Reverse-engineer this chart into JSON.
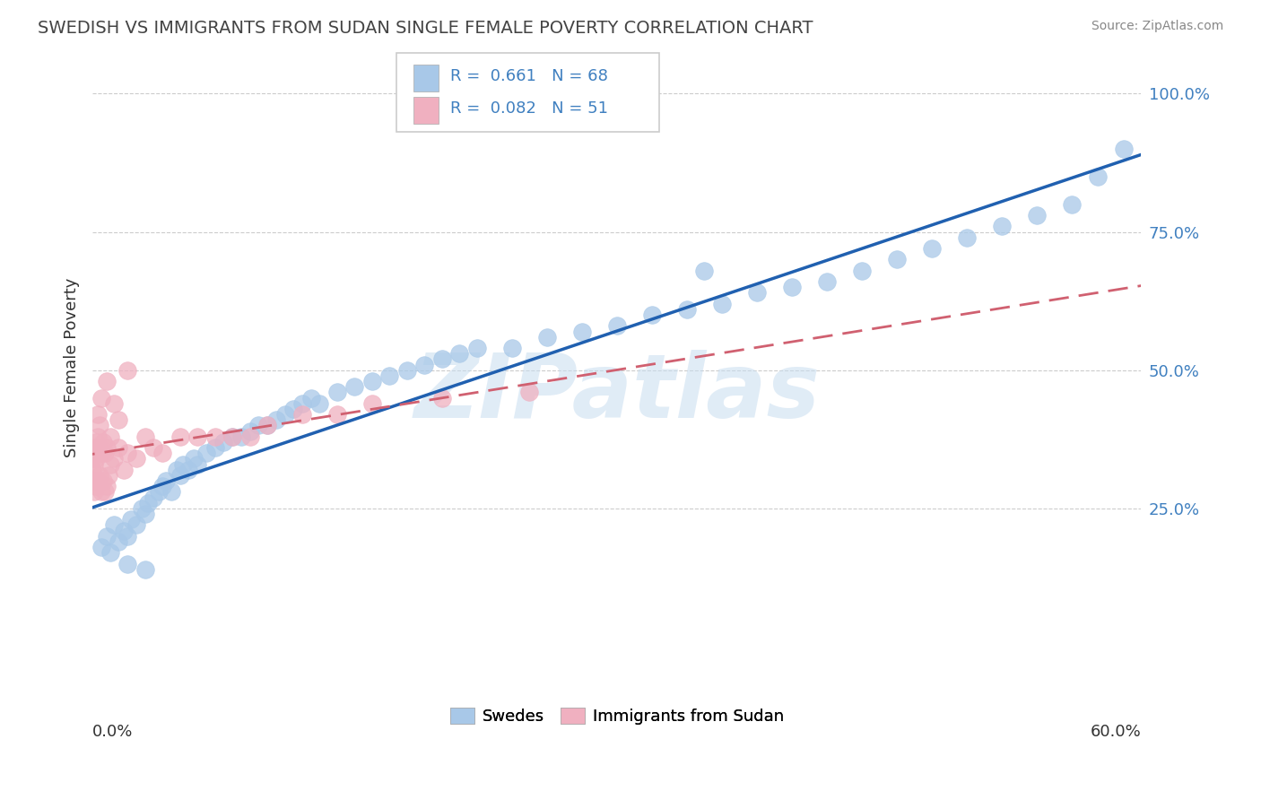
{
  "title": "SWEDISH VS IMMIGRANTS FROM SUDAN SINGLE FEMALE POVERTY CORRELATION CHART",
  "source": "Source: ZipAtlas.com",
  "ylabel": "Single Female Poverty",
  "blue_color": "#a8c8e8",
  "pink_color": "#f0b0c0",
  "trend_blue": "#2060b0",
  "trend_pink": "#d06070",
  "tick_color": "#4080c0",
  "watermark": "ZIPatlas",
  "legend_r1": "R = 0.661",
  "legend_n1": "N = 68",
  "legend_r2": "R = 0.082",
  "legend_n2": "N = 51",
  "xlim": [
    0.0,
    0.6
  ],
  "ylim": [
    -0.07,
    1.08
  ],
  "yticks": [
    0.25,
    0.5,
    0.75,
    1.0
  ],
  "ytick_labels": [
    "25.0%",
    "50.0%",
    "75.0%",
    "100.0%"
  ],
  "swedes_x": [
    0.005,
    0.008,
    0.01,
    0.012,
    0.015,
    0.018,
    0.02,
    0.022,
    0.025,
    0.028,
    0.03,
    0.032,
    0.035,
    0.038,
    0.04,
    0.042,
    0.045,
    0.048,
    0.05,
    0.052,
    0.055,
    0.058,
    0.06,
    0.065,
    0.07,
    0.075,
    0.08,
    0.085,
    0.09,
    0.095,
    0.1,
    0.105,
    0.11,
    0.115,
    0.12,
    0.125,
    0.13,
    0.14,
    0.15,
    0.16,
    0.17,
    0.18,
    0.19,
    0.2,
    0.21,
    0.22,
    0.24,
    0.26,
    0.28,
    0.3,
    0.32,
    0.34,
    0.36,
    0.38,
    0.4,
    0.42,
    0.44,
    0.46,
    0.48,
    0.5,
    0.52,
    0.54,
    0.56,
    0.575,
    0.02,
    0.03,
    0.59,
    0.35
  ],
  "swedes_y": [
    0.18,
    0.2,
    0.17,
    0.22,
    0.19,
    0.21,
    0.2,
    0.23,
    0.22,
    0.25,
    0.24,
    0.26,
    0.27,
    0.28,
    0.29,
    0.3,
    0.28,
    0.32,
    0.31,
    0.33,
    0.32,
    0.34,
    0.33,
    0.35,
    0.36,
    0.37,
    0.38,
    0.38,
    0.39,
    0.4,
    0.4,
    0.41,
    0.42,
    0.43,
    0.44,
    0.45,
    0.44,
    0.46,
    0.47,
    0.48,
    0.49,
    0.5,
    0.51,
    0.52,
    0.53,
    0.54,
    0.54,
    0.56,
    0.57,
    0.58,
    0.6,
    0.61,
    0.62,
    0.64,
    0.65,
    0.66,
    0.68,
    0.7,
    0.72,
    0.74,
    0.76,
    0.78,
    0.8,
    0.85,
    0.15,
    0.14,
    0.9,
    0.68
  ],
  "sudan_x": [
    0.0,
    0.0,
    0.0,
    0.001,
    0.001,
    0.001,
    0.002,
    0.002,
    0.002,
    0.003,
    0.003,
    0.003,
    0.004,
    0.004,
    0.004,
    0.005,
    0.005,
    0.006,
    0.006,
    0.007,
    0.007,
    0.008,
    0.008,
    0.009,
    0.01,
    0.01,
    0.012,
    0.015,
    0.018,
    0.02,
    0.025,
    0.03,
    0.035,
    0.04,
    0.05,
    0.06,
    0.07,
    0.08,
    0.09,
    0.1,
    0.12,
    0.14,
    0.16,
    0.2,
    0.25,
    0.02,
    0.003,
    0.005,
    0.008,
    0.012,
    0.015
  ],
  "sudan_y": [
    0.3,
    0.32,
    0.34,
    0.28,
    0.33,
    0.36,
    0.29,
    0.34,
    0.37,
    0.3,
    0.35,
    0.38,
    0.31,
    0.36,
    0.4,
    0.28,
    0.35,
    0.3,
    0.37,
    0.28,
    0.35,
    0.29,
    0.36,
    0.31,
    0.33,
    0.38,
    0.34,
    0.36,
    0.32,
    0.35,
    0.34,
    0.38,
    0.36,
    0.35,
    0.38,
    0.38,
    0.38,
    0.38,
    0.38,
    0.4,
    0.42,
    0.42,
    0.44,
    0.45,
    0.46,
    0.5,
    0.42,
    0.45,
    0.48,
    0.44,
    0.41
  ]
}
